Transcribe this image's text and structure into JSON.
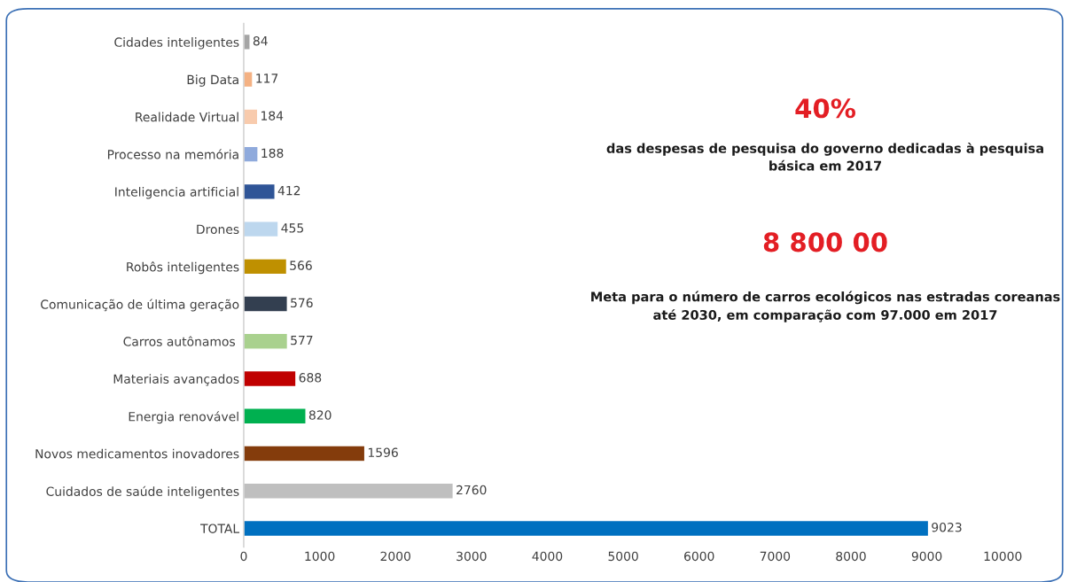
{
  "chart_data": {
    "type": "bar",
    "orientation": "horizontal",
    "categories": [
      "Cidades inteligentes",
      "Big Data",
      "Realidade Virtual",
      "Processo na memória",
      "Inteligencia artificial",
      "Drones",
      "Robôs inteligentes",
      "Comunicação de última geração",
      "Carros autônamos ",
      "Materiais avançados",
      "Energia renovável",
      "Novos medicamentos inovadores",
      "Cuidados de saúde inteligentes",
      "TOTAL"
    ],
    "values": [
      84,
      117,
      184,
      188,
      412,
      455,
      566,
      576,
      577,
      688,
      820,
      1596,
      2760,
      9023
    ],
    "colors": [
      "#a5a5a5",
      "#f4b183",
      "#f8cbad",
      "#8faadc",
      "#2f5597",
      "#bdd7ee",
      "#bf9000",
      "#333f50",
      "#a9d18e",
      "#c00000",
      "#00b050",
      "#843c0c",
      "#bfbfbf",
      "#0070c0"
    ],
    "xlim": [
      0,
      10000
    ],
    "xticks": [
      0,
      1000,
      2000,
      3000,
      4000,
      5000,
      6000,
      7000,
      8000,
      9000,
      10000
    ],
    "data_labels": true,
    "grid": false,
    "legend": false,
    "annotations": [
      "40%",
      "das despesas de pesquisa do governo dedicadas à pesquisa básica em 2017",
      "8 800 00",
      "Meta para o número de carros ecológicos nas estradas coreanas até 2030, em comparação com 97.000 em 2017"
    ]
  }
}
